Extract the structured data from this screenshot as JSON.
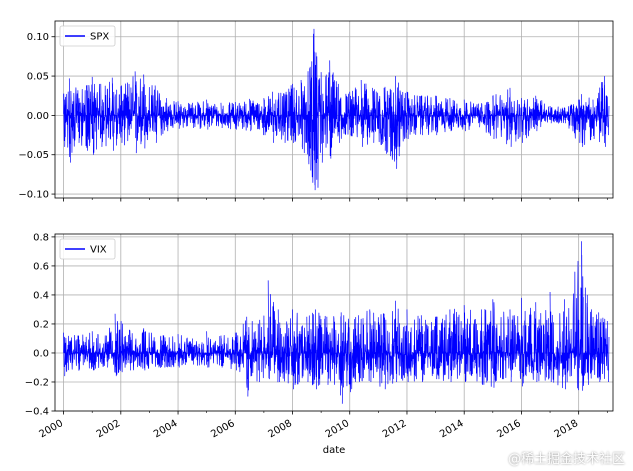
{
  "chart_data": [
    {
      "type": "line",
      "name": "spx-panel",
      "x_axis": "date",
      "xlim": [
        1999.7,
        2019.2
      ],
      "ylim": [
        -0.105,
        0.12
      ],
      "y_ticks": [
        "0.10",
        "0.05",
        "0.00",
        "−0.05",
        "−0.10"
      ],
      "y_tick_values": [
        0.1,
        0.05,
        0.0,
        -0.05,
        -0.1
      ],
      "grid": true,
      "legend_placement": "upper-left",
      "series": [
        {
          "name": "SPX",
          "color": "#0000ff",
          "x": [
            2000.0,
            2000.2,
            2000.5,
            2000.8,
            2001.0,
            2001.3,
            2001.7,
            2002.0,
            2002.5,
            2002.8,
            2003.2,
            2003.6,
            2004.0,
            2004.5,
            2005.0,
            2005.5,
            2006.0,
            2006.5,
            2007.0,
            2007.3,
            2007.7,
            2008.0,
            2008.3,
            2008.6,
            2008.75,
            2008.85,
            2009.0,
            2009.3,
            2009.6,
            2010.0,
            2010.4,
            2010.8,
            2011.2,
            2011.6,
            2012.0,
            2012.5,
            2013.0,
            2013.5,
            2014.0,
            2014.5,
            2015.0,
            2015.6,
            2016.0,
            2016.5,
            2017.0,
            2017.5,
            2018.0,
            2018.1,
            2018.5,
            2018.9,
            2019.0
          ],
          "upper": [
            0.027,
            0.047,
            0.032,
            0.038,
            0.049,
            0.04,
            0.048,
            0.037,
            0.056,
            0.052,
            0.038,
            0.022,
            0.018,
            0.016,
            0.02,
            0.016,
            0.017,
            0.021,
            0.022,
            0.03,
            0.028,
            0.04,
            0.045,
            0.06,
            0.11,
            0.075,
            0.055,
            0.07,
            0.04,
            0.03,
            0.045,
            0.035,
            0.035,
            0.05,
            0.03,
            0.025,
            0.025,
            0.022,
            0.02,
            0.015,
            0.025,
            0.035,
            0.022,
            0.025,
            0.012,
            0.01,
            0.02,
            0.027,
            0.02,
            0.05,
            0.024
          ],
          "lower": [
            -0.04,
            -0.06,
            -0.035,
            -0.045,
            -0.05,
            -0.04,
            -0.045,
            -0.035,
            -0.048,
            -0.042,
            -0.035,
            -0.02,
            -0.017,
            -0.016,
            -0.018,
            -0.016,
            -0.018,
            -0.02,
            -0.025,
            -0.035,
            -0.035,
            -0.035,
            -0.04,
            -0.07,
            -0.095,
            -0.092,
            -0.06,
            -0.055,
            -0.035,
            -0.025,
            -0.04,
            -0.035,
            -0.045,
            -0.068,
            -0.03,
            -0.025,
            -0.025,
            -0.02,
            -0.02,
            -0.015,
            -0.03,
            -0.04,
            -0.035,
            -0.02,
            -0.01,
            -0.01,
            -0.035,
            -0.04,
            -0.03,
            -0.04,
            -0.025
          ]
        }
      ]
    },
    {
      "type": "line",
      "name": "vix-panel",
      "x_axis": "date",
      "xlabel": "date",
      "xlim": [
        1999.7,
        2019.2
      ],
      "ylim": [
        -0.4,
        0.82
      ],
      "y_ticks": [
        "0.8",
        "0.6",
        "0.4",
        "0.2",
        "0.0",
        "−0.2",
        "−0.4"
      ],
      "y_tick_values": [
        0.8,
        0.6,
        0.4,
        0.2,
        0.0,
        -0.2,
        -0.4
      ],
      "x_ticks": [
        "2000",
        "2002",
        "2004",
        "2006",
        "2008",
        "2010",
        "2012",
        "2014",
        "2016",
        "2018"
      ],
      "x_tick_values": [
        2000,
        2002,
        2004,
        2006,
        2008,
        2010,
        2012,
        2014,
        2016,
        2018
      ],
      "grid": true,
      "legend_placement": "upper-left",
      "series": [
        {
          "name": "VIX",
          "color": "#0000ff",
          "x": [
            2000.0,
            2000.5,
            2001.0,
            2001.5,
            2001.8,
            2002.3,
            2002.8,
            2003.5,
            2004.0,
            2004.5,
            2005.0,
            2005.5,
            2006.0,
            2006.4,
            2006.8,
            2007.15,
            2007.5,
            2008.0,
            2008.5,
            2008.8,
            2009.2,
            2009.7,
            2010.3,
            2010.7,
            2011.2,
            2011.6,
            2012.0,
            2012.5,
            2013.0,
            2013.5,
            2014.0,
            2014.6,
            2015.0,
            2015.6,
            2016.0,
            2016.5,
            2017.0,
            2017.5,
            2018.1,
            2018.3,
            2018.7,
            2019.0
          ],
          "upper": [
            0.14,
            0.12,
            0.15,
            0.12,
            0.27,
            0.16,
            0.17,
            0.12,
            0.13,
            0.1,
            0.15,
            0.12,
            0.14,
            0.25,
            0.2,
            0.5,
            0.3,
            0.3,
            0.25,
            0.3,
            0.25,
            0.28,
            0.26,
            0.3,
            0.27,
            0.36,
            0.3,
            0.26,
            0.25,
            0.3,
            0.33,
            0.3,
            0.37,
            0.3,
            0.38,
            0.35,
            0.42,
            0.37,
            0.77,
            0.4,
            0.28,
            0.22
          ],
          "lower": [
            -0.16,
            -0.12,
            -0.12,
            -0.1,
            -0.16,
            -0.12,
            -0.12,
            -0.1,
            -0.1,
            -0.08,
            -0.1,
            -0.1,
            -0.12,
            -0.3,
            -0.2,
            -0.18,
            -0.2,
            -0.25,
            -0.2,
            -0.25,
            -0.22,
            -0.35,
            -0.2,
            -0.2,
            -0.25,
            -0.2,
            -0.2,
            -0.2,
            -0.18,
            -0.2,
            -0.2,
            -0.22,
            -0.24,
            -0.2,
            -0.23,
            -0.2,
            -0.2,
            -0.25,
            -0.26,
            -0.22,
            -0.2,
            -0.2
          ]
        }
      ]
    }
  ],
  "watermark": "@稀土掘金技术社区"
}
